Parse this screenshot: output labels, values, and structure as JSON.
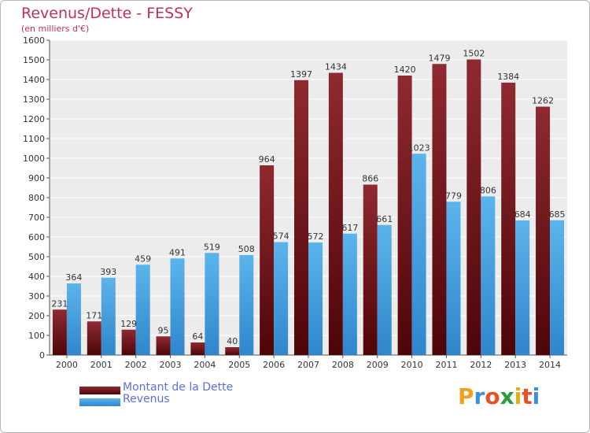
{
  "header": {
    "title": "Revenus/Dette - FESSY",
    "subtitle": "(en milliers d'€)"
  },
  "legend": {
    "debt_label": "Montant de la Dette",
    "revenue_label": "Revenus"
  },
  "logo": {
    "text": "Proxiti",
    "letters": [
      "P",
      "r",
      "o",
      "x",
      "i",
      "t",
      "i"
    ],
    "letter_colors": [
      "#f0a020",
      "#3c8ee0",
      "#e94f24",
      "#2a9a3a",
      "#e0b010",
      "#e94f24",
      "#3c8ee0"
    ]
  },
  "colors": {
    "debt": "#8b1e24",
    "debt_dark": "#5a0a10",
    "revenue": "#57aee8",
    "revenue_dark": "#3a8ed0",
    "plot_bg": "#ececec",
    "grid": "#ffffff"
  },
  "chart_data": {
    "type": "bar",
    "title": "Revenus/Dette - FESSY",
    "subtitle": "(en milliers d'€)",
    "categories": [
      "2000",
      "2001",
      "2002",
      "2003",
      "2004",
      "2005",
      "2006",
      "2007",
      "2008",
      "2009",
      "2010",
      "2011",
      "2012",
      "2013",
      "2014"
    ],
    "series": [
      {
        "name": "Montant de la Dette",
        "values": [
          231,
          171,
          129,
          95,
          64,
          40,
          964,
          1397,
          1434,
          866,
          1420,
          1479,
          1502,
          1384,
          1262
        ]
      },
      {
        "name": "Revenus",
        "values": [
          364,
          393,
          459,
          491,
          519,
          508,
          574,
          572,
          617,
          661,
          1023,
          779,
          806,
          684,
          685
        ]
      }
    ],
    "ylim": [
      0,
      1600
    ],
    "yticks": [
      0,
      100,
      200,
      300,
      400,
      500,
      600,
      700,
      800,
      900,
      1000,
      1100,
      1200,
      1300,
      1400,
      1500,
      1600
    ],
    "grid": true,
    "legend_position": "bottom-left"
  }
}
